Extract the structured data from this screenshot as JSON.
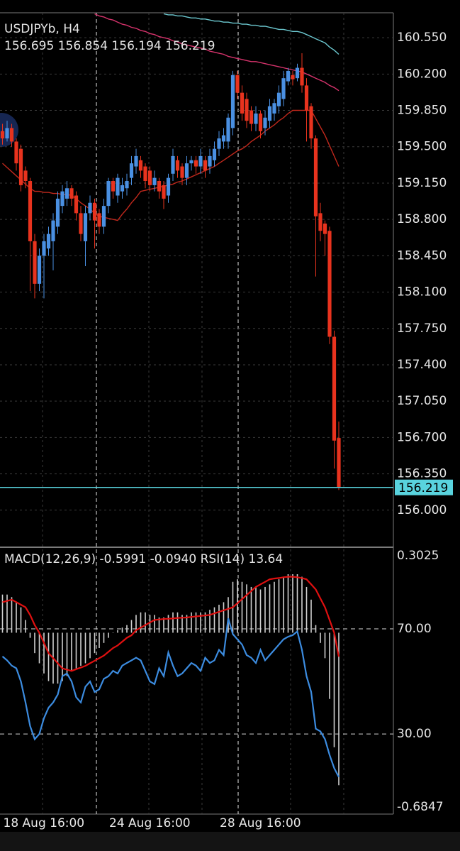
{
  "chart_data": [
    {
      "type": "candlestick",
      "title": "USDJPYb, H4",
      "categories": [
        "18 Aug 16:00",
        null,
        null,
        null,
        null,
        null,
        null,
        null,
        null,
        null,
        null,
        null,
        null,
        null,
        null,
        null,
        null,
        null,
        null,
        null,
        null,
        null,
        null,
        "24 Aug 16:00",
        null,
        null,
        null,
        null,
        null,
        null,
        null,
        null,
        null,
        null,
        null,
        null,
        null,
        null,
        null,
        null,
        null,
        null,
        null,
        null,
        null,
        null,
        null,
        "28 Aug 16:00",
        null,
        null,
        null,
        null,
        null,
        null,
        null,
        null,
        null,
        null,
        null,
        null,
        null,
        null,
        null,
        null,
        null,
        null,
        null,
        null,
        null,
        null,
        null,
        null,
        null,
        null
      ],
      "open": [
        159.65,
        159.58,
        159.68,
        159.55,
        159.48,
        159.27,
        159.17,
        158.59,
        158.18,
        158.45,
        158.52,
        158.59,
        158.73,
        158.93,
        159,
        159.1,
        159.03,
        158.86,
        158.59,
        158.86,
        158.96,
        158.86,
        158.73,
        158.93,
        159.17,
        159.03,
        159.07,
        159.1,
        159.2,
        159.31,
        159.37,
        159.31,
        159.27,
        159.13,
        159.17,
        159.13,
        159.03,
        159.24,
        159.37,
        159.31,
        159.2,
        159.34,
        159.37,
        159.31,
        159.37,
        159.31,
        159.37,
        159.48,
        159.55,
        159.55,
        159.68,
        160.19,
        160.02,
        159.96,
        159.85,
        159.72,
        159.82,
        159.68,
        159.75,
        159.82,
        159.89,
        159.96,
        160.13,
        160.19,
        160.16,
        160.26,
        160.09,
        159.89,
        159.58,
        158.86,
        158.76,
        158.69,
        157.67,
        156.695
      ],
      "high": [
        159.72,
        159.75,
        159.72,
        159.58,
        159.52,
        159.31,
        159.2,
        158.66,
        158.52,
        158.66,
        158.73,
        158.86,
        159.07,
        159.13,
        159.17,
        159.13,
        159.07,
        158.93,
        158.93,
        159.03,
        159,
        158.9,
        159,
        159.2,
        159.2,
        159.24,
        159.2,
        159.24,
        159.41,
        159.48,
        159.41,
        159.34,
        159.31,
        159.27,
        159.2,
        159.17,
        159.24,
        159.48,
        159.41,
        159.34,
        159.41,
        159.41,
        159.41,
        159.48,
        159.41,
        159.48,
        159.55,
        159.65,
        159.68,
        159.82,
        160.23,
        160.23,
        160.09,
        160.02,
        159.89,
        159.89,
        159.85,
        159.85,
        159.96,
        159.96,
        160.09,
        160.23,
        160.26,
        160.23,
        160.3,
        160.4,
        160.16,
        159.92,
        159.61,
        158.96,
        158.79,
        158.73,
        157.73,
        156.854
      ],
      "low": [
        159.52,
        159.55,
        159.5,
        159.27,
        159.07,
        159.1,
        158.11,
        158.04,
        158.11,
        158.04,
        158.45,
        158.31,
        158.66,
        158.86,
        158.93,
        158.93,
        158.79,
        158.59,
        158.35,
        158.79,
        158.52,
        158.66,
        158.66,
        158.86,
        159,
        158.96,
        159,
        159.03,
        159.13,
        159.24,
        159.2,
        159.1,
        159.07,
        159.07,
        159,
        158.9,
        158.96,
        159.17,
        159.2,
        159.13,
        159.13,
        159.27,
        159.24,
        159.24,
        159.2,
        159.24,
        159.31,
        159.41,
        159.48,
        159.48,
        159.61,
        159.96,
        159.75,
        159.68,
        159.65,
        159.65,
        159.58,
        159.61,
        159.68,
        159.75,
        159.82,
        159.89,
        160.09,
        160.09,
        160.13,
        160.02,
        159.55,
        159.48,
        158.25,
        158.59,
        158.45,
        157.6,
        156.4,
        156.194
      ],
      "close": [
        159.58,
        159.68,
        159.55,
        159.34,
        159.13,
        159.17,
        158.59,
        158.18,
        158.45,
        158.59,
        158.66,
        158.79,
        159,
        159.07,
        159.1,
        159,
        158.86,
        158.66,
        158.86,
        158.96,
        158.79,
        158.73,
        158.93,
        159.17,
        159.07,
        159.2,
        159.13,
        159.17,
        159.34,
        159.41,
        159.27,
        159.17,
        159.13,
        159.2,
        159.07,
        159,
        159.2,
        159.41,
        159.27,
        159.2,
        159.34,
        159.37,
        159.31,
        159.41,
        159.27,
        159.41,
        159.48,
        159.58,
        159.61,
        159.78,
        160.19,
        160.02,
        159.82,
        159.75,
        159.72,
        159.82,
        159.65,
        159.78,
        159.89,
        159.92,
        160.02,
        160.16,
        160.23,
        160.15,
        160.26,
        160.09,
        159.85,
        159.58,
        158.83,
        158.69,
        158.66,
        157.67,
        156.67,
        156.219
      ],
      "up_color": "#4a90e2",
      "down_color": "#e8331e",
      "last_price_color": "#59d3de",
      "series": [
        {
          "color": "#c0281c",
          "values": [
            159.34,
            159.3,
            159.26,
            159.22,
            159.18,
            159.14,
            159.1,
            159.07,
            159.07,
            159.06,
            159.06,
            159.05,
            159.05,
            159.04,
            159.04,
            159.03,
            159,
            158.96,
            158.93,
            158.9,
            158.86,
            158.83,
            158.82,
            158.81,
            158.8,
            158.79,
            158.85,
            158.9,
            158.96,
            159.01,
            159.07,
            159.08,
            159.09,
            159.1,
            159.11,
            159.12,
            159.13,
            159.14,
            159.16,
            159.17,
            159.19,
            159.21,
            159.23,
            159.25,
            159.27,
            159.29,
            159.31,
            159.34,
            159.37,
            159.4,
            159.43,
            159.46,
            159.48,
            159.51,
            159.55,
            159.58,
            159.61,
            159.65,
            159.68,
            159.71,
            159.75,
            159.78,
            159.82,
            159.85,
            159.85,
            159.85,
            159.85,
            159.85,
            159.77,
            159.69,
            159.61,
            159.51,
            159.41,
            159.31
          ]
        },
        {
          "color": "#d6336c",
          "values": [
            null,
            null,
            null,
            null,
            null,
            null,
            null,
            null,
            null,
            null,
            null,
            null,
            null,
            null,
            null,
            null,
            null,
            null,
            null,
            null,
            160.78,
            160.76,
            160.75,
            160.73,
            160.72,
            160.7,
            160.68,
            160.67,
            160.65,
            160.64,
            160.62,
            160.61,
            160.59,
            160.58,
            160.56,
            160.55,
            160.54,
            160.52,
            160.51,
            160.49,
            160.48,
            160.47,
            160.46,
            160.45,
            160.44,
            160.42,
            160.41,
            160.4,
            160.39,
            160.37,
            160.36,
            160.35,
            160.34,
            160.33,
            160.32,
            160.32,
            160.31,
            160.3,
            160.29,
            160.28,
            160.27,
            160.26,
            160.25,
            160.24,
            160.23,
            160.22,
            160.2,
            160.18,
            160.16,
            160.14,
            160.12,
            160.09,
            160.07,
            160.04
          ]
        },
        {
          "color": "#6cc8d0",
          "values": [
            null,
            null,
            null,
            null,
            null,
            null,
            null,
            null,
            null,
            null,
            null,
            null,
            null,
            null,
            null,
            null,
            null,
            null,
            null,
            null,
            null,
            null,
            null,
            null,
            null,
            null,
            null,
            null,
            null,
            null,
            null,
            null,
            null,
            null,
            null,
            160.78,
            160.77,
            160.77,
            160.76,
            160.76,
            160.75,
            160.74,
            160.74,
            160.73,
            160.73,
            160.72,
            160.71,
            160.71,
            160.7,
            160.7,
            160.69,
            160.69,
            160.68,
            160.68,
            160.67,
            160.67,
            160.66,
            160.66,
            160.65,
            160.64,
            160.63,
            160.63,
            160.62,
            160.61,
            160.61,
            160.6,
            160.58,
            160.56,
            160.54,
            160.52,
            160.5,
            160.46,
            160.43,
            160.39
          ]
        }
      ],
      "ylim": [
        155.65,
        160.79
      ],
      "yticks": [
        {
          "value": 160.55,
          "label": "160.550"
        },
        {
          "value": 160.2,
          "label": "160.200"
        },
        {
          "value": 159.85,
          "label": "159.850"
        },
        {
          "value": 159.5,
          "label": "159.500"
        },
        {
          "value": 159.15,
          "label": "159.150"
        },
        {
          "value": 158.8,
          "label": "158.800"
        },
        {
          "value": 158.45,
          "label": "158.450"
        },
        {
          "value": 158.1,
          "label": "158.100"
        },
        {
          "value": 157.75,
          "label": "157.750"
        },
        {
          "value": 157.4,
          "label": "157.400"
        },
        {
          "value": 157.05,
          "label": "157.050"
        },
        {
          "value": 156.7,
          "label": "156.700"
        },
        {
          "value": 156.35,
          "label": "156.350"
        },
        {
          "value": 156,
          "label": "156.000"
        }
      ],
      "grid": true
    },
    {
      "type": "indicator",
      "series": [
        {
          "name": "MACD(12,26,9)",
          "type": "histogram",
          "color": "#d0d0d0",
          "values": [
            0.15,
            0.15,
            0.14,
            0.12,
            0.1,
            0.05,
            -0.02,
            -0.08,
            -0.12,
            -0.16,
            -0.19,
            -0.2,
            -0.2,
            -0.19,
            -0.17,
            -0.15,
            -0.14,
            -0.13,
            -0.12,
            -0.1,
            -0.08,
            -0.06,
            -0.04,
            -0.02,
            0,
            0.01,
            0.02,
            0.03,
            0.05,
            0.07,
            0.08,
            0.08,
            0.07,
            0.07,
            0.06,
            0.06,
            0.07,
            0.08,
            0.08,
            0.07,
            0.07,
            0.08,
            0.08,
            0.08,
            0.08,
            0.09,
            0.1,
            0.11,
            0.12,
            0.14,
            0.2,
            0.21,
            0.2,
            0.19,
            0.18,
            0.18,
            0.17,
            0.18,
            0.19,
            0.2,
            0.21,
            0.22,
            0.23,
            0.23,
            0.23,
            0.22,
            0.18,
            0.13,
            0.03,
            -0.04,
            -0.1,
            -0.26,
            -0.45,
            -0.5991
          ]
        },
        {
          "type": "line",
          "color": "#e01010",
          "last_label": "-0.0940",
          "values": [
            0.12,
            0.125,
            0.13,
            0.12,
            0.11,
            0.1,
            0.07,
            0.03,
            0,
            -0.04,
            -0.08,
            -0.1,
            -0.12,
            -0.14,
            -0.145,
            -0.15,
            -0.143,
            -0.137,
            -0.13,
            -0.12,
            -0.11,
            -0.1,
            -0.09,
            -0.075,
            -0.06,
            -0.05,
            -0.035,
            -0.02,
            -0.01,
            0.01,
            0.02,
            0.03,
            0.04,
            0.05,
            0.052,
            0.054,
            0.055,
            0.056,
            0.058,
            0.059,
            0.06,
            0.062,
            0.064,
            0.066,
            0.068,
            0.07,
            0.076,
            0.082,
            0.088,
            0.094,
            0.1,
            0.116,
            0.132,
            0.148,
            0.164,
            0.18,
            0.19,
            0.2,
            0.21,
            0.213,
            0.215,
            0.218,
            0.22,
            0.22,
            0.218,
            0.215,
            0.21,
            0.19,
            0.17,
            0.135,
            0.1,
            0.05,
            0,
            -0.094
          ]
        },
        {
          "name": "RSI(14)",
          "type": "line",
          "axis": "y2",
          "color": "#3c8ce0",
          "values": [
            59.5,
            58,
            56,
            55,
            50,
            42,
            33,
            28,
            30,
            36,
            40,
            42,
            45,
            52,
            53,
            50,
            44,
            42,
            48,
            50,
            46,
            47,
            51,
            52,
            54,
            53,
            56,
            57,
            58,
            59,
            58,
            54,
            50,
            49,
            55,
            52,
            61,
            56,
            52,
            53,
            55,
            57,
            56,
            54,
            59,
            57,
            58,
            62,
            60,
            74,
            68,
            66,
            64,
            60,
            59,
            57,
            62,
            58,
            60,
            62,
            64,
            66,
            67,
            67.6,
            69,
            62,
            52,
            46,
            32,
            31,
            28,
            22,
            17,
            13.64
          ]
        }
      ],
      "ylim": [
        -0.7126,
        0.3332
      ],
      "yticks": [
        0.3025,
        -0.6847
      ],
      "y2lim": [
        -0.5,
        100.8
      ],
      "y2ticks": [
        {
          "value": 70,
          "label": "70.00"
        },
        {
          "value": 30,
          "label": "30.00"
        }
      ]
    }
  ]
}
